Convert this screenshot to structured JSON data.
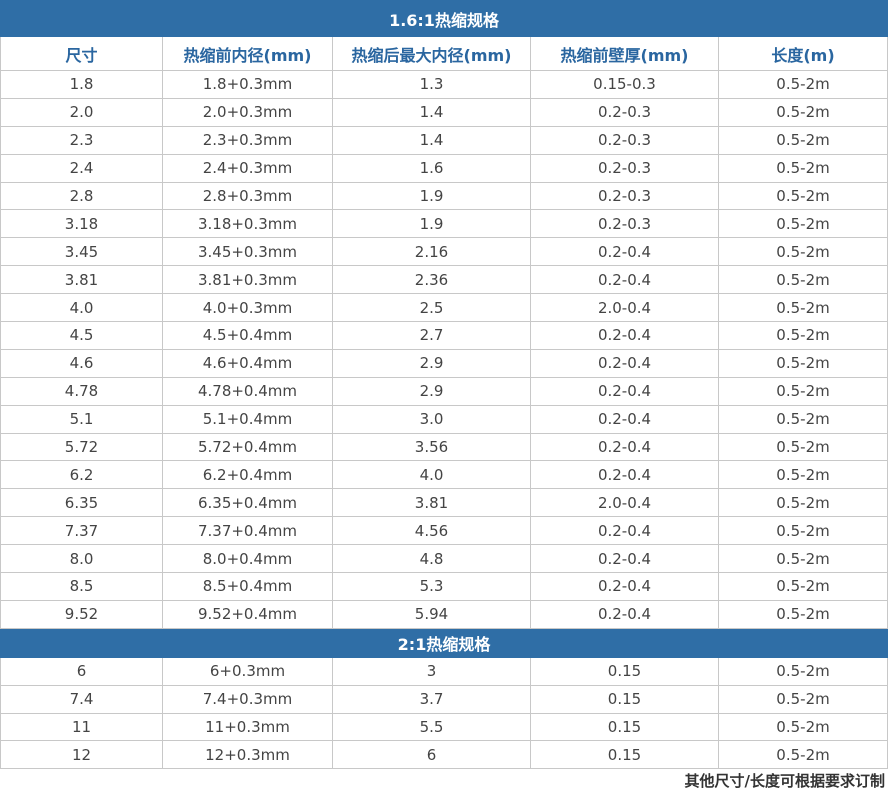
{
  "header": [
    "尺寸",
    "热缩前内径(mm)",
    "热缩后最大内径(mm)",
    "热缩前壁厚(mm)",
    "长度(m)"
  ],
  "sections": [
    {
      "title": "1.6:1热缩规格",
      "rows": [
        [
          "1.8",
          "1.8+0.3mm",
          "1.3",
          "0.15-0.3",
          "0.5-2m"
        ],
        [
          "2.0",
          "2.0+0.3mm",
          "1.4",
          "0.2-0.3",
          "0.5-2m"
        ],
        [
          "2.3",
          "2.3+0.3mm",
          "1.4",
          "0.2-0.3",
          "0.5-2m"
        ],
        [
          "2.4",
          "2.4+0.3mm",
          "1.6",
          "0.2-0.3",
          "0.5-2m"
        ],
        [
          "2.8",
          "2.8+0.3mm",
          "1.9",
          "0.2-0.3",
          "0.5-2m"
        ],
        [
          "3.18",
          "3.18+0.3mm",
          "1.9",
          "0.2-0.3",
          "0.5-2m"
        ],
        [
          "3.45",
          "3.45+0.3mm",
          "2.16",
          "0.2-0.4",
          "0.5-2m"
        ],
        [
          "3.81",
          "3.81+0.3mm",
          "2.36",
          "0.2-0.4",
          "0.5-2m"
        ],
        [
          "4.0",
          "4.0+0.3mm",
          "2.5",
          "2.0-0.4",
          "0.5-2m"
        ],
        [
          "4.5",
          "4.5+0.4mm",
          "2.7",
          "0.2-0.4",
          "0.5-2m"
        ],
        [
          "4.6",
          "4.6+0.4mm",
          "2.9",
          "0.2-0.4",
          "0.5-2m"
        ],
        [
          "4.78",
          "4.78+0.4mm",
          "2.9",
          "0.2-0.4",
          "0.5-2m"
        ],
        [
          "5.1",
          "5.1+0.4mm",
          "3.0",
          "0.2-0.4",
          "0.5-2m"
        ],
        [
          "5.72",
          "5.72+0.4mm",
          "3.56",
          "0.2-0.4",
          "0.5-2m"
        ],
        [
          "6.2",
          "6.2+0.4mm",
          "4.0",
          "0.2-0.4",
          "0.5-2m"
        ],
        [
          "6.35",
          "6.35+0.4mm",
          "3.81",
          "2.0-0.4",
          "0.5-2m"
        ],
        [
          "7.37",
          "7.37+0.4mm",
          "4.56",
          "0.2-0.4",
          "0.5-2m"
        ],
        [
          "8.0",
          "8.0+0.4mm",
          "4.8",
          "0.2-0.4",
          "0.5-2m"
        ],
        [
          "8.5",
          "8.5+0.4mm",
          "5.3",
          "0.2-0.4",
          "0.5-2m"
        ],
        [
          "9.52",
          "9.52+0.4mm",
          "5.94",
          "0.2-0.4",
          "0.5-2m"
        ]
      ]
    },
    {
      "title": "2:1热缩规格",
      "rows": [
        [
          "6",
          "6+0.3mm",
          "3",
          "0.15",
          "0.5-2m"
        ],
        [
          "7.4",
          "7.4+0.3mm",
          "3.7",
          "0.15",
          "0.5-2m"
        ],
        [
          "11",
          "11+0.3mm",
          "5.5",
          "0.15",
          "0.5-2m"
        ],
        [
          "12",
          "12+0.3mm",
          "6",
          "0.15",
          "0.5-2m"
        ]
      ]
    }
  ],
  "note": "其他尺寸/长度可根据要求订制"
}
